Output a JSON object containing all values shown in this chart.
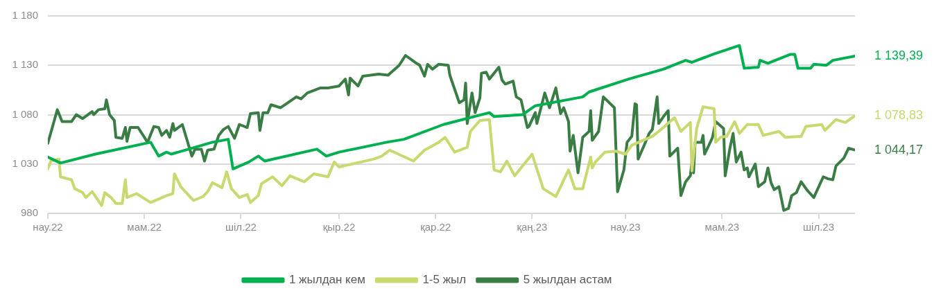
{
  "chart_data": {
    "type": "line",
    "xlim": [
      "2022-03-01",
      "2023-07-24"
    ],
    "xticks": [
      {
        "value": "2022-03-01",
        "label": "нау.22"
      },
      {
        "value": "2022-05-01",
        "label": "мам.22"
      },
      {
        "value": "2022-07-01",
        "label": "шіл.22"
      },
      {
        "value": "2022-09-01",
        "label": "қыр.22"
      },
      {
        "value": "2022-11-01",
        "label": "қар.22"
      },
      {
        "value": "2023-01-01",
        "label": "қаң.23"
      },
      {
        "value": "2023-03-01",
        "label": "нау.23"
      },
      {
        "value": "2023-05-01",
        "label": "мам.23"
      },
      {
        "value": "2023-07-01",
        "label": "шіл.23"
      }
    ],
    "ylim": [
      980,
      1180
    ],
    "yticks": [
      980,
      {
        "value": 1030,
        "label": "1 030"
      },
      {
        "value": 1080,
        "label": "1 080"
      },
      {
        "value": 1130,
        "label": "1 130"
      },
      {
        "value": 1180,
        "label": "1 180"
      }
    ],
    "grid": "y",
    "legend": "bottom",
    "series": [
      {
        "name": "1 жылдан кем",
        "color": "#00b050",
        "x": [
          "2022-03-01",
          "2022-03-09",
          "2022-03-31",
          "2022-05-05",
          "2022-05-10",
          "2022-05-15",
          "2022-05-18",
          "2022-06-13",
          "2022-06-23",
          "2022-06-26",
          "2022-07-06",
          "2022-07-12",
          "2022-07-16",
          "2022-08-18",
          "2022-08-24",
          "2022-09-01",
          "2022-10-01",
          "2022-10-12",
          "2022-11-06",
          "2022-12-05",
          "2022-12-08",
          "2022-12-26",
          "2023-01-03",
          "2023-02-02",
          "2023-02-06",
          "2023-03-03",
          "2023-03-25",
          "2023-04-08",
          "2023-04-12",
          "2023-04-25",
          "2023-05-10",
          "2023-05-12",
          "2023-05-15",
          "2023-05-24",
          "2023-05-25",
          "2023-05-30",
          "2023-06-13",
          "2023-06-16",
          "2023-06-18",
          "2023-06-26",
          "2023-06-28",
          "2023-07-06",
          "2023-07-10",
          "2023-07-24"
        ],
        "values": [
          1037,
          1031,
          1040,
          1052,
          1038,
          1042,
          1040,
          1052,
          1055,
          1025,
          1032,
          1038,
          1033,
          1045,
          1038,
          1042,
          1052,
          1055,
          1070,
          1082,
          1078,
          1080,
          1089,
          1098,
          1103,
          1116,
          1126,
          1135,
          1133,
          1141,
          1149,
          1150,
          1127,
          1128,
          1135,
          1132,
          1141,
          1141,
          1127,
          1127,
          1131,
          1130,
          1135,
          1139.39
        ]
      },
      {
        "name": "1-5 жыл",
        "color": "#c9d86f",
        "x": [
          "2022-03-01",
          "2022-03-03",
          "2022-03-08",
          "2022-03-09",
          "2022-03-16",
          "2022-03-18",
          "2022-03-23",
          "2022-03-25",
          "2022-03-29",
          "2022-04-04",
          "2022-04-06",
          "2022-04-10",
          "2022-04-13",
          "2022-04-17",
          "2022-04-19",
          "2022-04-20",
          "2022-04-26",
          "2022-05-05",
          "2022-05-15",
          "2022-05-19",
          "2022-05-20",
          "2022-05-24",
          "2022-06-01",
          "2022-06-07",
          "2022-06-10",
          "2022-06-13",
          "2022-06-19",
          "2022-06-22",
          "2022-06-25",
          "2022-06-30",
          "2022-07-05",
          "2022-07-07",
          "2022-07-12",
          "2022-07-14",
          "2022-07-21",
          "2022-07-27",
          "2022-08-01",
          "2022-08-10",
          "2022-08-16",
          "2022-08-25",
          "2022-08-29",
          "2022-09-01",
          "2022-09-23",
          "2022-09-28",
          "2022-10-03",
          "2022-10-18",
          "2022-10-25",
          "2022-11-03",
          "2022-11-07",
          "2022-11-13",
          "2022-11-21",
          "2022-11-23",
          "2022-11-29",
          "2022-12-05",
          "2022-12-08",
          "2022-12-12",
          "2022-12-16",
          "2022-12-21",
          "2023-01-01",
          "2023-01-08",
          "2023-01-16",
          "2023-01-24",
          "2023-01-28",
          "2023-02-02",
          "2023-02-07",
          "2023-02-08",
          "2023-02-10",
          "2023-02-16",
          "2023-02-23",
          "2023-03-01",
          "2023-03-05",
          "2023-03-18",
          "2023-03-25",
          "2023-04-01",
          "2023-04-05",
          "2023-04-11",
          "2023-04-12",
          "2023-04-15",
          "2023-04-19",
          "2023-04-26",
          "2023-04-27",
          "2023-04-30",
          "2023-05-04",
          "2023-05-09",
          "2023-05-12",
          "2023-05-17",
          "2023-05-24",
          "2023-05-27",
          "2023-06-06",
          "2023-06-10",
          "2023-06-20",
          "2023-06-23",
          "2023-07-03",
          "2023-07-05",
          "2023-07-12",
          "2023-07-18",
          "2023-07-24"
        ],
        "values": [
          1025,
          1033,
          1035,
          1017,
          1014,
          1005,
          1001,
          996,
          1002,
          988,
          1001,
          996,
          990,
          990,
          1014,
          996,
          1000,
          991,
          998,
          1000,
          1020,
          1007,
          993,
          997,
          1002,
          1011,
          1006,
          1022,
          1005,
          996,
          999,
          991,
          998,
          1010,
          1017,
          1008,
          1018,
          1012,
          1020,
          1017,
          1032,
          1027,
          1035,
          1038,
          1044,
          1033,
          1044,
          1052,
          1057,
          1042,
          1047,
          1063,
          1074,
          1075,
          1024,
          1022,
          1033,
          1018,
          1040,
          1005,
          997,
          1024,
          1005,
          1005,
          1037,
          1026,
          1032,
          1042,
          1043,
          1040,
          1049,
          1058,
          1067,
          1077,
          1063,
          1072,
          1023,
          1066,
          1088,
          1086,
          1052,
          1057,
          1058,
          1073,
          1061,
          1070,
          1070,
          1059,
          1063,
          1057,
          1058,
          1068,
          1070,
          1064,
          1075,
          1072,
          1078.83
        ]
      },
      {
        "name": "5 жылдан астам",
        "color": "#3a7d44",
        "x": [
          "2022-03-01",
          "2022-03-07",
          "2022-03-10",
          "2022-03-16",
          "2022-03-19",
          "2022-03-23",
          "2022-03-29",
          "2022-03-30",
          "2022-04-02",
          "2022-04-06",
          "2022-04-07",
          "2022-04-09",
          "2022-04-12",
          "2022-04-13",
          "2022-04-17",
          "2022-04-19",
          "2022-04-20",
          "2022-04-22",
          "2022-04-27",
          "2022-05-03",
          "2022-05-07",
          "2022-05-10",
          "2022-05-12",
          "2022-05-15",
          "2022-05-17",
          "2022-05-19",
          "2022-05-20",
          "2022-05-25",
          "2022-05-31",
          "2022-06-02",
          "2022-06-06",
          "2022-06-08",
          "2022-06-10",
          "2022-06-14",
          "2022-06-17",
          "2022-06-20",
          "2022-06-23",
          "2022-06-27",
          "2022-06-30",
          "2022-07-05",
          "2022-07-07",
          "2022-07-12",
          "2022-07-13",
          "2022-07-15",
          "2022-07-18",
          "2022-07-20",
          "2022-07-26",
          "2022-08-05",
          "2022-08-08",
          "2022-08-12",
          "2022-08-20",
          "2022-08-25",
          "2022-09-01",
          "2022-09-05",
          "2022-09-07",
          "2022-09-08",
          "2022-09-13",
          "2022-09-16",
          "2022-09-26",
          "2022-10-02",
          "2022-10-09",
          "2022-10-13",
          "2022-10-19",
          "2022-10-22",
          "2022-10-25",
          "2022-10-27",
          "2022-10-30",
          "2022-11-03",
          "2022-11-09",
          "2022-11-10",
          "2022-11-16",
          "2022-11-19",
          "2022-11-20",
          "2022-11-21",
          "2022-11-24",
          "2022-11-26",
          "2022-11-29",
          "2022-11-30",
          "2022-12-03",
          "2022-12-05",
          "2022-12-11",
          "2022-12-13",
          "2022-12-15",
          "2022-12-20",
          "2022-12-22",
          "2022-12-25",
          "2022-12-29",
          "2022-12-30",
          "2023-01-03",
          "2023-01-04",
          "2023-01-09",
          "2023-01-12",
          "2023-01-16",
          "2023-01-19",
          "2023-01-21",
          "2023-01-24",
          "2023-01-25",
          "2023-01-27",
          "2023-01-30",
          "2023-02-02",
          "2023-02-06",
          "2023-02-07",
          "2023-02-08",
          "2023-02-12",
          "2023-02-15",
          "2023-02-22",
          "2023-02-24",
          "2023-02-28",
          "2023-03-02",
          "2023-03-05",
          "2023-03-07",
          "2023-03-08",
          "2023-03-09",
          "2023-03-12",
          "2023-03-16",
          "2023-03-18",
          "2023-03-21",
          "2023-03-22",
          "2023-03-25",
          "2023-03-28",
          "2023-03-29",
          "2023-04-03",
          "2023-04-05",
          "2023-04-08",
          "2023-04-11",
          "2023-04-12",
          "2023-04-13",
          "2023-04-14",
          "2023-04-18",
          "2023-04-19",
          "2023-04-20",
          "2023-04-23",
          "2023-04-25",
          "2023-04-27",
          "2023-05-02",
          "2023-05-03",
          "2023-05-06",
          "2023-05-08",
          "2023-05-10",
          "2023-05-13",
          "2023-05-15",
          "2023-05-17",
          "2023-05-18",
          "2023-05-22",
          "2023-05-24",
          "2023-05-28",
          "2023-05-30",
          "2023-06-01",
          "2023-06-03",
          "2023-06-06",
          "2023-06-09",
          "2023-06-12",
          "2023-06-14",
          "2023-06-17",
          "2023-06-20",
          "2023-06-24",
          "2023-06-28",
          "2023-07-04",
          "2023-07-07",
          "2023-07-10",
          "2023-07-12",
          "2023-07-17",
          "2023-07-20",
          "2023-07-24"
        ],
        "values": [
          1051,
          1085,
          1073,
          1073,
          1080,
          1076,
          1083,
          1080,
          1085,
          1086,
          1095,
          1080,
          1074,
          1057,
          1056,
          1067,
          1053,
          1067,
          1067,
          1052,
          1068,
          1067,
          1059,
          1064,
          1057,
          1071,
          1064,
          1070,
          1038,
          1045,
          1045,
          1033,
          1044,
          1045,
          1059,
          1065,
          1068,
          1056,
          1070,
          1067,
          1081,
          1082,
          1064,
          1082,
          1082,
          1090,
          1087,
          1098,
          1096,
          1102,
          1107,
          1107,
          1109,
          1116,
          1100,
          1117,
          1109,
          1119,
          1121,
          1120,
          1130,
          1140,
          1133,
          1130,
          1119,
          1131,
          1126,
          1131,
          1130,
          1120,
          1092,
          1095,
          1112,
          1071,
          1102,
          1082,
          1097,
          1122,
          1123,
          1116,
          1128,
          1115,
          1111,
          1114,
          1098,
          1095,
          1067,
          1068,
          1082,
          1071,
          1102,
          1087,
          1107,
          1081,
          1087,
          1073,
          1043,
          1059,
          1021,
          1057,
          1063,
          1084,
          1054,
          1063,
          1098,
          1087,
          1002,
          1024,
          1052,
          1058,
          1091,
          1090,
          1035,
          1046,
          1061,
          1065,
          1098,
          1071,
          1078,
          1084,
          1038,
          1046,
          998,
          1012,
          1018,
          1032,
          1021,
          1052,
          1052,
          1059,
          1040,
          1050,
          1057,
          1073,
          1066,
          1018,
          1046,
          1061,
          1032,
          1042,
          1024,
          1026,
          1017,
          1030,
          1007,
          1012,
          1026,
          1011,
          1004,
          1007,
          983,
          985,
          998,
          1001,
          1012,
          1003,
          996,
          1017,
          1015,
          1014,
          1028,
          1036,
          1046,
          1044.17
        ]
      }
    ],
    "annotations": [
      {
        "text": "1 139,39",
        "x": "2023-07-24",
        "y": 1139.39
      },
      {
        "text": "1 078,83",
        "x": "2023-07-24",
        "y": 1078.83
      },
      {
        "text": "1 044,17",
        "x": "2023-07-24",
        "y": 1044.17
      }
    ]
  }
}
